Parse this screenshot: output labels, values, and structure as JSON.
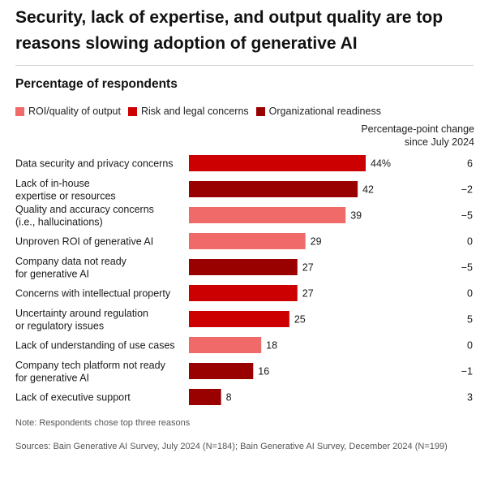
{
  "title": "Security, lack of expertise, and output quality are top reasons slowing adoption of generative AI",
  "subtitle": "Percentage of respondents",
  "legend": [
    {
      "label": "ROI/quality of output",
      "color": "#f06a6a"
    },
    {
      "label": "Risk and legal concerns",
      "color": "#cc0000"
    },
    {
      "label": "Organizational readiness",
      "color": "#990000"
    }
  ],
  "change_header": "Percentage-point change since July 2024",
  "note": "Note: Respondents chose top three reasons",
  "sources": "Sources: Bain Generative AI Survey, July 2024 (N=184); Bain Generative AI Survey, December 2024 (N=199)",
  "chart_data": {
    "type": "bar",
    "orientation": "horizontal",
    "title": "Security, lack of expertise, and output quality are top reasons slowing adoption of generative AI",
    "subtitle": "Percentage of respondents",
    "xlim": [
      0,
      48
    ],
    "bars": [
      {
        "lines": [
          "Data security and privacy concerns"
        ],
        "value": 44,
        "value_label": "44%",
        "category": "Risk and legal concerns",
        "color": "#cc0000",
        "change": "6"
      },
      {
        "lines": [
          "Lack of in-house",
          "expertise or resources"
        ],
        "value": 42,
        "value_label": "42",
        "category": "Organizational readiness",
        "color": "#990000",
        "change": "−2"
      },
      {
        "lines": [
          "Quality and accuracy concerns",
          "(i.e., hallucinations)"
        ],
        "value": 39,
        "value_label": "39",
        "category": "ROI/quality of output",
        "color": "#f06a6a",
        "change": "−5"
      },
      {
        "lines": [
          "Unproven ROI of generative AI"
        ],
        "value": 29,
        "value_label": "29",
        "category": "ROI/quality of output",
        "color": "#f06a6a",
        "change": "0"
      },
      {
        "lines": [
          "Company data not ready",
          "for generative AI"
        ],
        "value": 27,
        "value_label": "27",
        "category": "Organizational readiness",
        "color": "#990000",
        "change": "−5"
      },
      {
        "lines": [
          "Concerns with intellectual property"
        ],
        "value": 27,
        "value_label": "27",
        "category": "Risk and legal concerns",
        "color": "#cc0000",
        "change": "0"
      },
      {
        "lines": [
          "Uncertainty around regulation",
          "or regulatory issues"
        ],
        "value": 25,
        "value_label": "25",
        "category": "Risk and legal concerns",
        "color": "#cc0000",
        "change": "5"
      },
      {
        "lines": [
          "Lack of understanding of use cases"
        ],
        "value": 18,
        "value_label": "18",
        "category": "ROI/quality of output",
        "color": "#f06a6a",
        "change": "0"
      },
      {
        "lines": [
          "Company tech platform not ready",
          "for generative AI"
        ],
        "value": 16,
        "value_label": "16",
        "category": "Organizational readiness",
        "color": "#990000",
        "change": "−1"
      },
      {
        "lines": [
          "Lack of executive support"
        ],
        "value": 8,
        "value_label": "8",
        "category": "Organizational readiness",
        "color": "#990000",
        "change": "3"
      }
    ]
  }
}
